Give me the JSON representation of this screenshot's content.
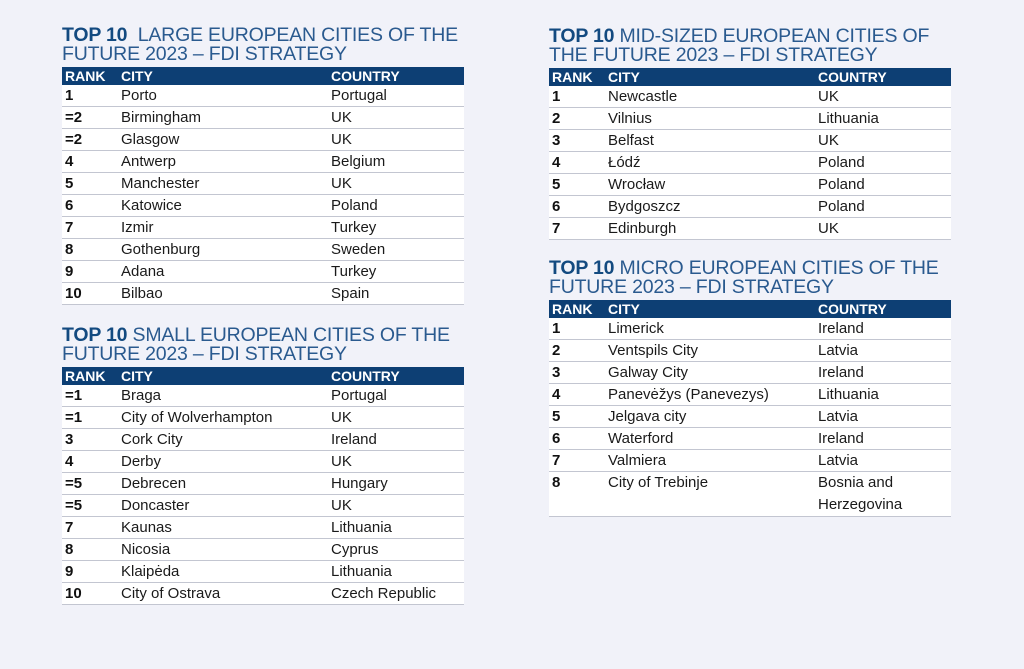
{
  "tables": {
    "large": {
      "title_lead": "TOP 10",
      "title_rest": "LARGE EUROPEAN CITIES OF THE FUTURE 2023 – FDI STRATEGY",
      "headers": {
        "rank": "RANK",
        "city": "CITY",
        "country": "COUNTRY"
      },
      "rows": [
        {
          "rank": "1",
          "city": "Porto",
          "country": "Portugal"
        },
        {
          "rank": "=2",
          "city": "Birmingham",
          "country": "UK"
        },
        {
          "rank": "=2",
          "city": "Glasgow",
          "country": "UK"
        },
        {
          "rank": "4",
          "city": "Antwerp",
          "country": "Belgium"
        },
        {
          "rank": "5",
          "city": "Manchester",
          "country": "UK"
        },
        {
          "rank": "6",
          "city": "Katowice",
          "country": "Poland"
        },
        {
          "rank": "7",
          "city": "Izmir",
          "country": "Turkey"
        },
        {
          "rank": "8",
          "city": "Gothenburg",
          "country": "Sweden"
        },
        {
          "rank": "9",
          "city": "Adana",
          "country": "Turkey"
        },
        {
          "rank": "10",
          "city": "Bilbao",
          "country": "Spain"
        }
      ]
    },
    "small": {
      "title_lead": "TOP 10",
      "title_rest": "SMALL EUROPEAN CITIES OF THE FUTURE 2023 – FDI STRATEGY",
      "headers": {
        "rank": "RANK",
        "city": "CITY",
        "country": "COUNTRY"
      },
      "rows": [
        {
          "rank": "=1",
          "city": "Braga",
          "country": "Portugal"
        },
        {
          "rank": "=1",
          "city": "City of Wolverhampton",
          "country": "UK"
        },
        {
          "rank": "3",
          "city": "Cork City",
          "country": "Ireland"
        },
        {
          "rank": "4",
          "city": "Derby",
          "country": "UK"
        },
        {
          "rank": "=5",
          "city": "Debrecen",
          "country": "Hungary"
        },
        {
          "rank": "=5",
          "city": "Doncaster",
          "country": "UK"
        },
        {
          "rank": "7",
          "city": "Kaunas",
          "country": "Lithuania"
        },
        {
          "rank": "8",
          "city": "Nicosia",
          "country": "Cyprus"
        },
        {
          "rank": "9",
          "city": "Klaipėda",
          "country": "Lithuania"
        },
        {
          "rank": "10",
          "city": "City of Ostrava",
          "country": "Czech Republic"
        }
      ]
    },
    "mid": {
      "title_lead": "TOP 10",
      "title_rest": "MID-SIZED EUROPEAN CITIES OF THE FUTURE 2023 – FDI STRATEGY",
      "headers": {
        "rank": "RANK",
        "city": "CITY",
        "country": "COUNTRY"
      },
      "rows": [
        {
          "rank": "1",
          "city": "Newcastle",
          "country": "UK"
        },
        {
          "rank": "2",
          "city": "Vilnius",
          "country": "Lithuania"
        },
        {
          "rank": "3",
          "city": "Belfast",
          "country": "UK"
        },
        {
          "rank": "4",
          "city": "Łódź",
          "country": "Poland"
        },
        {
          "rank": "5",
          "city": "Wrocław",
          "country": "Poland"
        },
        {
          "rank": "6",
          "city": "Bydgoszcz",
          "country": "Poland"
        },
        {
          "rank": "7",
          "city": "Edinburgh",
          "country": "UK"
        }
      ]
    },
    "micro": {
      "title_lead": "TOP 10",
      "title_rest": "MICRO EUROPEAN CITIES OF THE FUTURE 2023 – FDI STRATEGY",
      "headers": {
        "rank": "RANK",
        "city": "CITY",
        "country": "COUNTRY"
      },
      "rows": [
        {
          "rank": "1",
          "city": "Limerick",
          "country": "Ireland"
        },
        {
          "rank": "2",
          "city": "Ventspils City",
          "country": "Latvia"
        },
        {
          "rank": "3",
          "city": "Galway City",
          "country": "Ireland"
        },
        {
          "rank": "4",
          "city": "Panevėžys (Panevezys)",
          "country": "Lithuania"
        },
        {
          "rank": "5",
          "city": "Jelgava city",
          "country": "Latvia"
        },
        {
          "rank": "6",
          "city": "Waterford",
          "country": "Ireland"
        },
        {
          "rank": "7",
          "city": "Valmiera",
          "country": "Latvia"
        },
        {
          "rank": "8",
          "city": "City of Trebinje",
          "country": "Bosnia and Herzegovina"
        }
      ]
    }
  },
  "colors": {
    "header_bg": "#0d3f74",
    "title": "#2a5a8f",
    "background": "#f1f2f9"
  }
}
